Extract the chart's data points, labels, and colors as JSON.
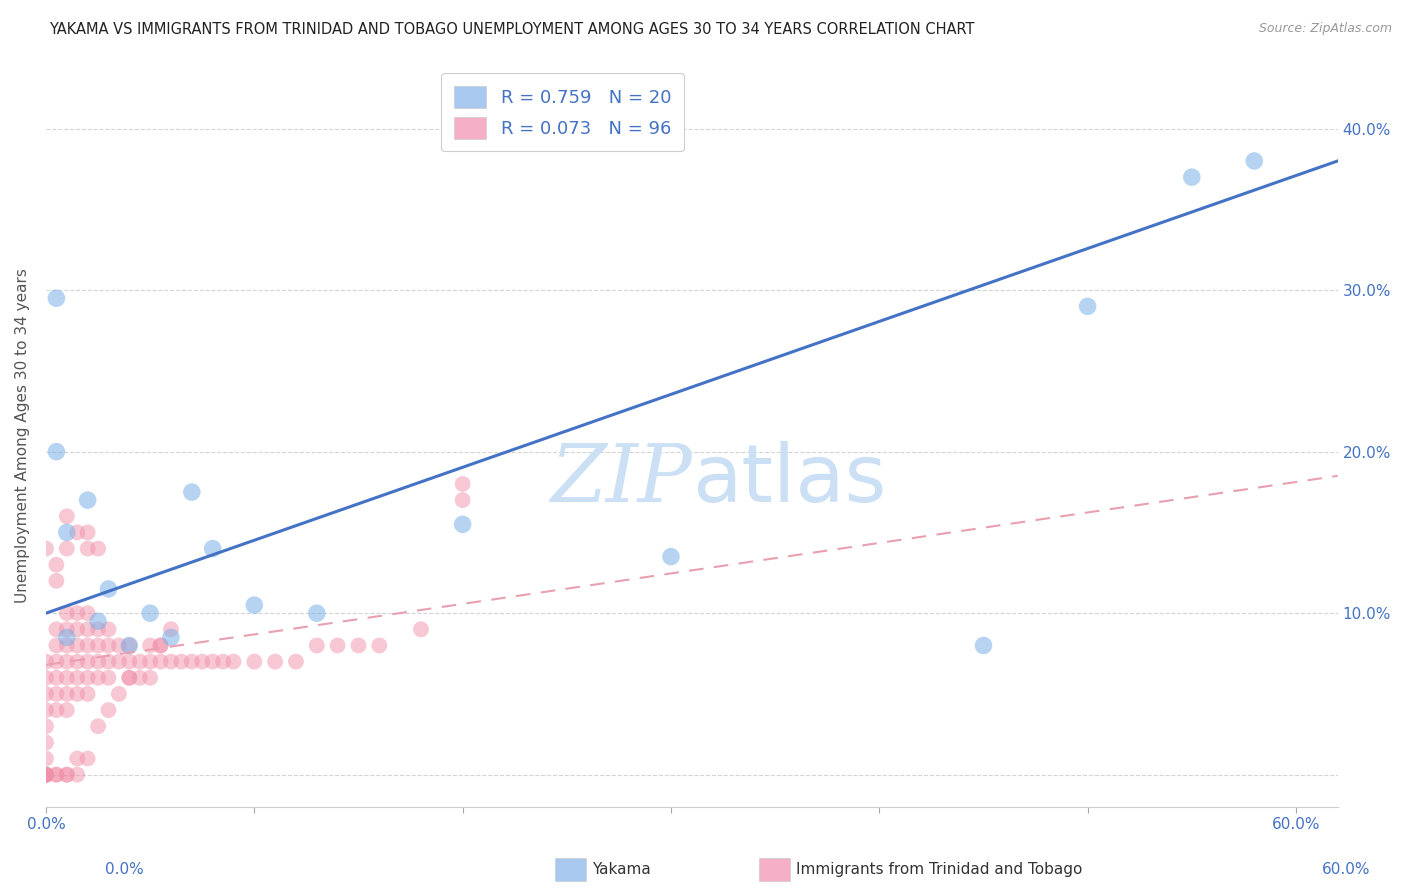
{
  "title": "YAKAMA VS IMMIGRANTS FROM TRINIDAD AND TOBAGO UNEMPLOYMENT AMONG AGES 30 TO 34 YEARS CORRELATION CHART",
  "source": "Source: ZipAtlas.com",
  "ylabel": "Unemployment Among Ages 30 to 34 years",
  "xlim": [
    0.0,
    0.62
  ],
  "ylim": [
    -0.02,
    0.44
  ],
  "watermark_zip": "ZIP",
  "watermark_atlas": "atlas",
  "series_yakama": {
    "color": "#7ab0e8",
    "x": [
      0.005,
      0.005,
      0.01,
      0.01,
      0.02,
      0.025,
      0.03,
      0.04,
      0.05,
      0.06,
      0.07,
      0.08,
      0.1,
      0.13,
      0.2,
      0.3,
      0.45,
      0.5,
      0.55,
      0.58
    ],
    "y": [
      0.2,
      0.295,
      0.15,
      0.085,
      0.17,
      0.095,
      0.115,
      0.08,
      0.1,
      0.085,
      0.175,
      0.14,
      0.105,
      0.1,
      0.155,
      0.135,
      0.08,
      0.29,
      0.37,
      0.38
    ]
  },
  "series_trinidad": {
    "color": "#f090a8",
    "x": [
      0.0,
      0.0,
      0.0,
      0.0,
      0.0,
      0.0,
      0.0,
      0.0,
      0.0,
      0.0,
      0.005,
      0.005,
      0.005,
      0.005,
      0.005,
      0.005,
      0.01,
      0.01,
      0.01,
      0.01,
      0.01,
      0.01,
      0.01,
      0.015,
      0.015,
      0.015,
      0.015,
      0.015,
      0.015,
      0.02,
      0.02,
      0.02,
      0.02,
      0.02,
      0.02,
      0.025,
      0.025,
      0.025,
      0.025,
      0.03,
      0.03,
      0.03,
      0.03,
      0.035,
      0.035,
      0.04,
      0.04,
      0.04,
      0.045,
      0.045,
      0.05,
      0.05,
      0.055,
      0.055,
      0.06,
      0.065,
      0.07,
      0.075,
      0.08,
      0.085,
      0.09,
      0.1,
      0.11,
      0.12,
      0.13,
      0.14,
      0.15,
      0.16,
      0.18,
      0.2,
      0.0,
      0.005,
      0.005,
      0.01,
      0.01,
      0.015,
      0.02,
      0.02,
      0.025,
      0.0,
      0.0,
      0.005,
      0.005,
      0.01,
      0.01,
      0.015,
      0.015,
      0.02,
      0.025,
      0.03,
      0.035,
      0.04,
      0.05,
      0.055,
      0.06,
      0.2
    ],
    "y": [
      0.07,
      0.06,
      0.05,
      0.04,
      0.03,
      0.02,
      0.01,
      0.0,
      0.0,
      0.0,
      0.09,
      0.08,
      0.07,
      0.06,
      0.05,
      0.04,
      0.1,
      0.09,
      0.08,
      0.07,
      0.06,
      0.05,
      0.04,
      0.1,
      0.09,
      0.08,
      0.07,
      0.06,
      0.05,
      0.1,
      0.09,
      0.08,
      0.07,
      0.06,
      0.05,
      0.09,
      0.08,
      0.07,
      0.06,
      0.09,
      0.08,
      0.07,
      0.06,
      0.08,
      0.07,
      0.08,
      0.07,
      0.06,
      0.07,
      0.06,
      0.07,
      0.06,
      0.08,
      0.07,
      0.07,
      0.07,
      0.07,
      0.07,
      0.07,
      0.07,
      0.07,
      0.07,
      0.07,
      0.07,
      0.08,
      0.08,
      0.08,
      0.08,
      0.09,
      0.17,
      0.14,
      0.13,
      0.12,
      0.16,
      0.14,
      0.15,
      0.15,
      0.14,
      0.14,
      0.0,
      0.0,
      0.0,
      0.0,
      0.0,
      0.0,
      0.0,
      0.01,
      0.01,
      0.03,
      0.04,
      0.05,
      0.06,
      0.08,
      0.08,
      0.09,
      0.18
    ]
  },
  "trendline_yakama": {
    "color": "#4472c4",
    "x_start": 0.0,
    "x_end": 0.62,
    "y_start": 0.1,
    "y_end": 0.38,
    "linewidth": 2.2
  },
  "trendline_trinidad": {
    "color": "#e8a0b0",
    "x_start": 0.0,
    "x_end": 0.62,
    "y_start": 0.068,
    "y_end": 0.185,
    "linewidth": 1.5
  },
  "grid_color": "#d0d0d0",
  "background_color": "#ffffff",
  "title_fontsize": 10.5,
  "axis_label_fontsize": 11,
  "tick_fontsize": 11,
  "legend_fontsize": 13,
  "watermark_fontsize_zip": 58,
  "watermark_fontsize_atlas": 58,
  "watermark_color": "#cce0f5",
  "source_text": "Source: ZipAtlas.com"
}
